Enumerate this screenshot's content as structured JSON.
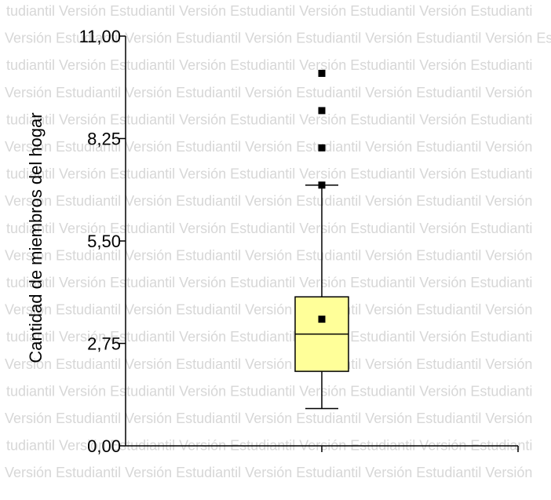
{
  "watermark": {
    "text": "Versión Estudiantil",
    "rows": [
      "tudiantil   Versión Estudiantil   Versión Estudiantil   Versión Estudiantil   Versión Estudianti",
      "Versión Estudiantil   Versión Estudiantil   Versión Estudiantil   Versión Estudiantil   Versión Estudianti",
      "tudiantil   Versión Estudiantil   Versión Estudiantil   Versión Estudiantil   Versión Estudianti",
      "Versión Estudiantil   Versión Estudiantil   Versión Estudiantil   Versión Estudiantil   Versión",
      "tudiantil   Versión Estudiantil   Versión Estudiantil   Versión Estudiantil   Versión Estudianti",
      "Versión Estudiantil   Versión Estudiantil   Versión Estudiantil   Versión Estudiantil   Versión",
      "tudiantil   Versión Estudiantil   Versión Estudiantil   Versión Estudiantil   Versión Estudianti",
      "Versión Estudiantil   Versión Estudiantil   Versión Estudiantil   Versión Estudiantil   Versión",
      "tudiantil   Versión Estudiantil   Versión Estudiantil   Versión Estudiantil   Versión Estudianti",
      "Versión Estudiantil   Versión Estudiantil   Versión Estudiantil   Versión Estudiantil   Versión",
      "tudiantil   Versión Estudiantil   Versión Estudiantil   Versión Estudiantil   Versión Estudianti",
      "Versión Estudiantil   Versión Estudiantil   Versión Estudiantil   Versión Estudiantil   Versión",
      "tudiantil   Versión Estudiantil   Versión Estudiantil   Versión Estudiantil   Versión Estudianti",
      "Versión Estudiantil   Versión Estudiantil   Versión Estudiantil   Versión Estudiantil   Versión",
      "tudiantil   Versión Estudiantil   Versión Estudiantil   Versión Estudiantil   Versión Estudianti",
      "Versión Estudiantil   Versión Estudiantil   Versión Estudiantil   Versión Estudiantil   Versión",
      "tudiantil   Versión Estudiantil   Versión Estudiantil   Versión Estudiantil   Versión Estudianti",
      "Versión Estudiantil   Versión Estudiantil   Versión Estudiantil   Versión Estudiantil   Versión"
    ],
    "color": "#d7d7d7"
  },
  "chart_data": {
    "type": "boxplot",
    "title": "",
    "xlabel": "",
    "ylabel": "Cantidad de miembros del hogar",
    "ylim": [
      0,
      11
    ],
    "yticks": [
      0,
      2.75,
      5.5,
      8.25,
      11
    ],
    "ytick_labels": [
      "0,00",
      "2,75",
      "5,50",
      "8,25",
      "11,00"
    ],
    "grid": false,
    "legend": "none",
    "box": {
      "whisker_low": 1,
      "q1": 2,
      "median": 3,
      "q3": 4,
      "whisker_high": 7,
      "mean": 3.4
    },
    "outliers": [
      7,
      8,
      9,
      10
    ],
    "box_fill": "#ffff99",
    "line_color": "#000000"
  }
}
